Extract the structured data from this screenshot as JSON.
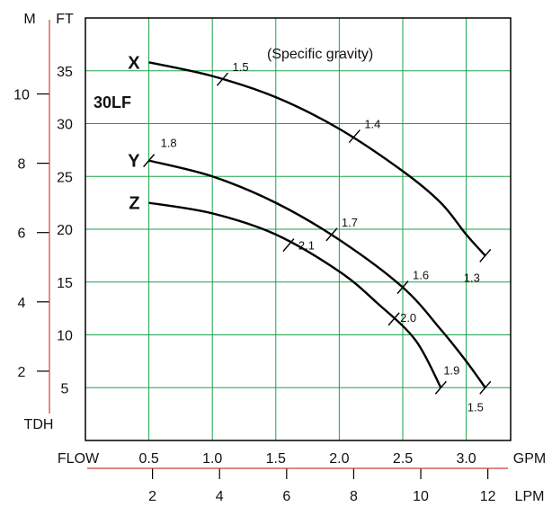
{
  "chart_data": {
    "type": "line",
    "model": "30LF",
    "annotation": "(Specific gravity)",
    "x_title": "FLOW",
    "x_unit": "GPM",
    "x_ticks": [
      "0.5",
      "1.0",
      "1.5",
      "2.0",
      "2.5",
      "3.0"
    ],
    "x2_unit": "LPM",
    "x2_ticks": [
      "2",
      "4",
      "6",
      "8",
      "10",
      "12"
    ],
    "y_unit": "FT",
    "y_ticks": [
      "5",
      "10",
      "15",
      "20",
      "25",
      "30",
      "35"
    ],
    "y2_unit": "M",
    "y2_ticks": [
      "2",
      "4",
      "6",
      "8",
      "10"
    ],
    "y_title": "TDH",
    "xlim": [
      0,
      3.35
    ],
    "ylim": [
      0,
      40
    ],
    "grid": true,
    "colors": {
      "grid": "#1aa34a",
      "secondary_axis": "#d23c3c",
      "curve": "#000000"
    },
    "series": [
      {
        "name": "X",
        "x": [
          0.5,
          1.0,
          1.5,
          2.0,
          2.5,
          2.8,
          3.0,
          3.15
        ],
        "y": [
          35.8,
          34.5,
          32.5,
          29.5,
          25.5,
          22.5,
          19.5,
          17.5
        ],
        "sg_marks": [
          {
            "label": "1.5",
            "x": 1.08,
            "y": 34.2
          },
          {
            "label": "1.4",
            "x": 2.12,
            "y": 28.8
          },
          {
            "label": "1.3",
            "x": 3.15,
            "y": 17.5
          }
        ]
      },
      {
        "name": "Y",
        "x": [
          0.5,
          1.0,
          1.5,
          2.0,
          2.5,
          2.8,
          3.0,
          3.15
        ],
        "y": [
          26.5,
          25.0,
          22.5,
          19.0,
          14.5,
          10.5,
          7.5,
          5.0
        ],
        "sg_marks": [
          {
            "label": "1.8",
            "x": 0.5,
            "y": 26.5
          },
          {
            "label": "1.7",
            "x": 1.94,
            "y": 19.5
          },
          {
            "label": "1.6",
            "x": 2.5,
            "y": 14.5
          },
          {
            "label": "1.5",
            "x": 3.15,
            "y": 5.0
          }
        ]
      },
      {
        "name": "Z",
        "x": [
          0.5,
          1.0,
          1.5,
          2.0,
          2.3,
          2.6,
          2.8
        ],
        "y": [
          22.5,
          21.5,
          19.5,
          16.0,
          13.0,
          9.5,
          5.0
        ],
        "sg_marks": [
          {
            "label": "2.1",
            "x": 1.6,
            "y": 18.5
          },
          {
            "label": "2.0",
            "x": 2.43,
            "y": 11.5
          },
          {
            "label": "1.9",
            "x": 2.8,
            "y": 5.0
          }
        ]
      }
    ]
  }
}
